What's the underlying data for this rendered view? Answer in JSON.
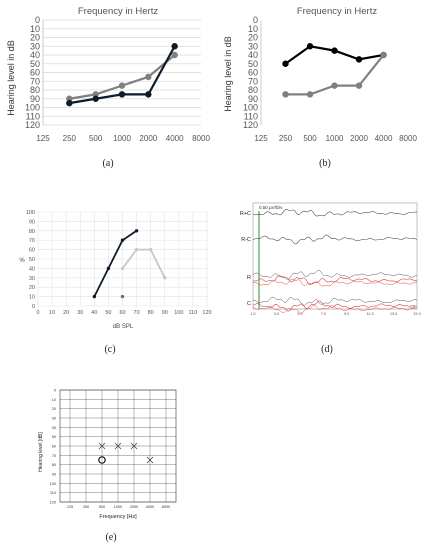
{
  "chart_data": [
    {
      "id": "a",
      "type": "line",
      "caption": "(a)",
      "title": "Frequency in Hertz",
      "ylabel": "Hearing level in dB",
      "x_ticks": [
        "125",
        "250",
        "500",
        "1000",
        "2000",
        "4000",
        "8000"
      ],
      "y_ticks": [
        "0",
        "10",
        "20",
        "30",
        "40",
        "50",
        "60",
        "70",
        "80",
        "90",
        "100",
        "110",
        "120"
      ],
      "ylim": [
        0,
        120
      ],
      "y_inverted": true,
      "grid": true,
      "series": [
        {
          "color": "#808080",
          "x": [
            "250",
            "500",
            "1000",
            "2000",
            "4000"
          ],
          "values": [
            90,
            85,
            75,
            65,
            40
          ]
        },
        {
          "color": "#0d1b2a",
          "x": [
            "250",
            "500",
            "1000",
            "2000",
            "4000"
          ],
          "values": [
            95,
            90,
            85,
            85,
            30
          ]
        }
      ]
    },
    {
      "id": "b",
      "type": "line",
      "caption": "(b)",
      "title": "Frequency in Hertz",
      "ylabel": "Hearing level in dB",
      "x_ticks": [
        "125",
        "250",
        "500",
        "1000",
        "2000",
        "4000",
        "8000"
      ],
      "y_ticks": [
        "0",
        "10",
        "20",
        "30",
        "40",
        "50",
        "60",
        "70",
        "80",
        "90",
        "100",
        "110",
        "120"
      ],
      "ylim": [
        0,
        120
      ],
      "y_inverted": true,
      "grid": true,
      "series": [
        {
          "color": "#000000",
          "x": [
            "250",
            "500",
            "1000",
            "2000",
            "4000"
          ],
          "values": [
            50,
            30,
            35,
            45,
            40
          ]
        },
        {
          "color": "#808080",
          "x": [
            "250",
            "500",
            "1000",
            "2000",
            "4000"
          ],
          "values": [
            85,
            85,
            75,
            75,
            40
          ]
        }
      ]
    },
    {
      "id": "c",
      "type": "line",
      "caption": "(c)",
      "xlabel": "dB SPL",
      "ylabel": "%",
      "x_ticks": [
        "0",
        "10",
        "20",
        "30",
        "40",
        "50",
        "60",
        "70",
        "80",
        "90",
        "100",
        "110",
        "120"
      ],
      "y_ticks": [
        "0",
        "10",
        "20",
        "30",
        "40",
        "50",
        "60",
        "70",
        "80",
        "90",
        "100"
      ],
      "xlim": [
        0,
        120
      ],
      "ylim": [
        0,
        100
      ],
      "grid": true,
      "series": [
        {
          "color": "#0d1b2a",
          "x": [
            40,
            50,
            60,
            70
          ],
          "values": [
            10,
            40,
            70,
            80
          ]
        },
        {
          "color": "#c8c8c8",
          "x": [
            60,
            70,
            80,
            90
          ],
          "values": [
            40,
            60,
            60,
            30
          ]
        },
        {
          "color": "#707070",
          "x": [
            60
          ],
          "values": [
            10
          ]
        }
      ]
    },
    {
      "id": "d",
      "type": "line",
      "caption": "(d)",
      "scale_label": "0.50 µV/Div",
      "x_unit": "ms",
      "x_ticks": [
        "1.0",
        "3.0",
        "5.0",
        "7.0",
        "9.0",
        "11.0",
        "13.0",
        "15.0"
      ],
      "trace_labels": [
        "R+C",
        "R-C",
        "R",
        "C"
      ]
    },
    {
      "id": "e",
      "type": "scatter",
      "caption": "(e)",
      "xlabel": "Frequency [Hz]",
      "ylabel": "Hearing level [dB]",
      "x_ticks": [
        "125",
        "250",
        "500",
        "1000",
        "2000",
        "4000",
        "8000"
      ],
      "y_ticks": [
        "0",
        "10",
        "20",
        "30",
        "40",
        "50",
        "60",
        "70",
        "80",
        "90",
        "100",
        "110",
        "120"
      ],
      "ylim": [
        0,
        120
      ],
      "y_inverted": true,
      "grid": true,
      "series": [
        {
          "marker": "x",
          "x": [
            "500",
            "1000",
            "2000",
            "4000"
          ],
          "values": [
            60,
            60,
            60,
            75
          ]
        },
        {
          "marker": "o",
          "x": [
            "500"
          ],
          "values": [
            75
          ]
        }
      ]
    }
  ]
}
